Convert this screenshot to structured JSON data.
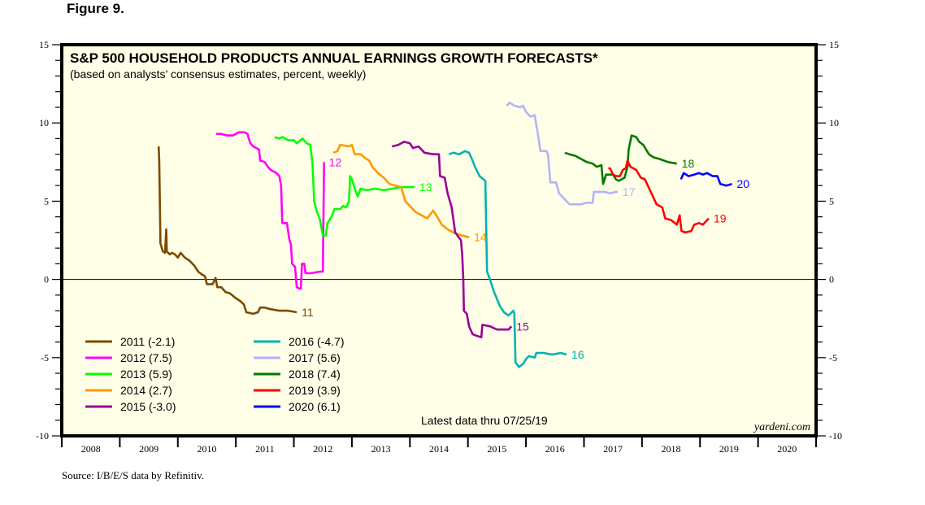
{
  "figure_label": "Figure 9.",
  "source": "Source: I/B/E/S data by Refinitiv.",
  "latest_note": "Latest data thru 07/25/19",
  "watermark": "yardeni.com",
  "chart_data": {
    "type": "line",
    "title": "S&P 500 HOUSEHOLD PRODUCTS ANNUAL EARNINGS GROWTH FORECASTS*",
    "subtitle": "(based on analysts’ consensus estimates, percent, weekly)",
    "xlabel": "",
    "ylabel": "",
    "xlim": [
      2008,
      2021
    ],
    "ylim": [
      -10,
      15
    ],
    "y_ticks": [
      15,
      10,
      5,
      0,
      -5,
      -10
    ],
    "y_tick_labels": [
      "15",
      "10",
      "5",
      "0",
      "-5",
      "-10"
    ],
    "x_tick_labels": [
      "2008",
      "2009",
      "2010",
      "2011",
      "2012",
      "2013",
      "2014",
      "2015",
      "2016",
      "2017",
      "2018",
      "2019",
      "2020"
    ],
    "zero_line": true,
    "grid": false,
    "background": "#fffee6",
    "legend_position": "bottom-left",
    "series": [
      {
        "name": "2011 (-2.1)",
        "end_label": "11",
        "color": "#7b4a00",
        "points": [
          [
            2009.67,
            8.5
          ],
          [
            2009.68,
            7.6
          ],
          [
            2009.7,
            2.3
          ],
          [
            2009.74,
            1.8
          ],
          [
            2009.78,
            1.7
          ],
          [
            2009.8,
            3.2
          ],
          [
            2009.81,
            1.8
          ],
          [
            2009.86,
            1.6
          ],
          [
            2009.9,
            1.7
          ],
          [
            2009.95,
            1.6
          ],
          [
            2010.0,
            1.4
          ],
          [
            2010.05,
            1.7
          ],
          [
            2010.12,
            1.4
          ],
          [
            2010.2,
            1.2
          ],
          [
            2010.28,
            0.9
          ],
          [
            2010.35,
            0.5
          ],
          [
            2010.42,
            0.3
          ],
          [
            2010.47,
            0.2
          ],
          [
            2010.5,
            -0.3
          ],
          [
            2010.6,
            -0.3
          ],
          [
            2010.65,
            0.1
          ],
          [
            2010.68,
            -0.5
          ],
          [
            2010.75,
            -0.5
          ],
          [
            2010.82,
            -0.8
          ],
          [
            2010.9,
            -0.9
          ],
          [
            2011.0,
            -1.2
          ],
          [
            2011.08,
            -1.4
          ],
          [
            2011.14,
            -1.6
          ],
          [
            2011.18,
            -2.1
          ],
          [
            2011.3,
            -2.2
          ],
          [
            2011.38,
            -2.1
          ],
          [
            2011.42,
            -1.8
          ],
          [
            2011.5,
            -1.8
          ],
          [
            2011.6,
            -1.9
          ],
          [
            2011.75,
            -2.0
          ],
          [
            2011.9,
            -2.0
          ],
          [
            2012.05,
            -2.1
          ]
        ]
      },
      {
        "name": "2012 (7.5)",
        "end_label": "12",
        "color": "#ff00ff",
        "points": [
          [
            2010.66,
            9.3
          ],
          [
            2010.75,
            9.3
          ],
          [
            2010.85,
            9.2
          ],
          [
            2010.95,
            9.2
          ],
          [
            2011.05,
            9.4
          ],
          [
            2011.15,
            9.4
          ],
          [
            2011.2,
            9.3
          ],
          [
            2011.25,
            8.7
          ],
          [
            2011.3,
            8.5
          ],
          [
            2011.4,
            8.3
          ],
          [
            2011.42,
            7.6
          ],
          [
            2011.5,
            7.5
          ],
          [
            2011.55,
            7.2
          ],
          [
            2011.6,
            7.0
          ],
          [
            2011.7,
            6.8
          ],
          [
            2011.75,
            6.6
          ],
          [
            2011.78,
            6.0
          ],
          [
            2011.8,
            3.6
          ],
          [
            2011.88,
            3.6
          ],
          [
            2011.92,
            2.6
          ],
          [
            2011.95,
            2.2
          ],
          [
            2011.97,
            1.0
          ],
          [
            2012.02,
            0.8
          ],
          [
            2012.05,
            -0.5
          ],
          [
            2012.1,
            -0.6
          ],
          [
            2012.12,
            -0.6
          ],
          [
            2012.14,
            1.0
          ],
          [
            2012.18,
            1.0
          ],
          [
            2012.2,
            0.4
          ],
          [
            2012.3,
            0.4
          ],
          [
            2012.45,
            0.5
          ],
          [
            2012.5,
            0.5
          ],
          [
            2012.52,
            7.5
          ]
        ]
      },
      {
        "name": "2013 (5.9)",
        "end_label": "13",
        "color": "#00ff00",
        "points": [
          [
            2011.67,
            9.1
          ],
          [
            2011.75,
            9.0
          ],
          [
            2011.8,
            9.1
          ],
          [
            2011.9,
            8.9
          ],
          [
            2012.0,
            8.9
          ],
          [
            2012.05,
            8.7
          ],
          [
            2012.15,
            9.0
          ],
          [
            2012.22,
            8.7
          ],
          [
            2012.28,
            8.6
          ],
          [
            2012.32,
            7.5
          ],
          [
            2012.35,
            5.0
          ],
          [
            2012.4,
            4.3
          ],
          [
            2012.45,
            3.8
          ],
          [
            2012.5,
            2.8
          ],
          [
            2012.55,
            2.8
          ],
          [
            2012.58,
            3.6
          ],
          [
            2012.65,
            4.0
          ],
          [
            2012.7,
            4.5
          ],
          [
            2012.8,
            4.5
          ],
          [
            2012.85,
            4.7
          ],
          [
            2012.9,
            4.6
          ],
          [
            2012.95,
            5.0
          ],
          [
            2012.97,
            6.6
          ],
          [
            2013.0,
            6.4
          ],
          [
            2013.05,
            5.8
          ],
          [
            2013.1,
            5.3
          ],
          [
            2013.15,
            5.8
          ],
          [
            2013.25,
            5.7
          ],
          [
            2013.4,
            5.8
          ],
          [
            2013.55,
            5.7
          ],
          [
            2013.7,
            5.8
          ],
          [
            2013.85,
            5.9
          ],
          [
            2014.08,
            5.9
          ]
        ]
      },
      {
        "name": "2014 (2.7)",
        "end_label": "14",
        "color": "#ff9900",
        "points": [
          [
            2012.68,
            8.1
          ],
          [
            2012.75,
            8.2
          ],
          [
            2012.8,
            8.6
          ],
          [
            2012.95,
            8.5
          ],
          [
            2013.0,
            8.6
          ],
          [
            2013.05,
            8.0
          ],
          [
            2013.15,
            8.0
          ],
          [
            2013.25,
            7.7
          ],
          [
            2013.3,
            7.6
          ],
          [
            2013.35,
            7.2
          ],
          [
            2013.45,
            6.8
          ],
          [
            2013.55,
            6.5
          ],
          [
            2013.65,
            6.1
          ],
          [
            2013.75,
            6.0
          ],
          [
            2013.85,
            5.9
          ],
          [
            2013.92,
            5.0
          ],
          [
            2013.97,
            4.8
          ],
          [
            2014.1,
            4.3
          ],
          [
            2014.2,
            4.1
          ],
          [
            2014.3,
            3.9
          ],
          [
            2014.4,
            4.4
          ],
          [
            2014.47,
            4.0
          ],
          [
            2014.55,
            3.5
          ],
          [
            2014.65,
            3.2
          ],
          [
            2014.75,
            3.0
          ],
          [
            2014.9,
            2.8
          ],
          [
            2015.02,
            2.7
          ]
        ]
      },
      {
        "name": "2015 (-3.0)",
        "end_label": "15",
        "color": "#990099",
        "points": [
          [
            2013.69,
            8.5
          ],
          [
            2013.8,
            8.6
          ],
          [
            2013.9,
            8.8
          ],
          [
            2014.0,
            8.7
          ],
          [
            2014.05,
            8.4
          ],
          [
            2014.15,
            8.5
          ],
          [
            2014.25,
            8.1
          ],
          [
            2014.4,
            8.0
          ],
          [
            2014.5,
            8.0
          ],
          [
            2014.52,
            6.6
          ],
          [
            2014.6,
            6.5
          ],
          [
            2014.65,
            5.5
          ],
          [
            2014.72,
            4.6
          ],
          [
            2014.78,
            3.0
          ],
          [
            2014.88,
            2.5
          ],
          [
            2014.9,
            1.6
          ],
          [
            2014.92,
            0.0
          ],
          [
            2014.93,
            -2.0
          ],
          [
            2014.98,
            -2.2
          ],
          [
            2015.02,
            -3.0
          ],
          [
            2015.08,
            -3.5
          ],
          [
            2015.15,
            -3.6
          ],
          [
            2015.23,
            -3.7
          ],
          [
            2015.25,
            -2.9
          ],
          [
            2015.38,
            -3.0
          ],
          [
            2015.5,
            -3.2
          ],
          [
            2015.6,
            -3.2
          ],
          [
            2015.7,
            -3.2
          ],
          [
            2015.75,
            -3.0
          ]
        ]
      },
      {
        "name": "2016 (-4.7)",
        "end_label": "16",
        "color": "#00b3b3",
        "points": [
          [
            2014.67,
            8.0
          ],
          [
            2014.75,
            8.1
          ],
          [
            2014.85,
            8.0
          ],
          [
            2014.95,
            8.2
          ],
          [
            2015.02,
            8.1
          ],
          [
            2015.08,
            7.6
          ],
          [
            2015.12,
            7.2
          ],
          [
            2015.2,
            6.6
          ],
          [
            2015.3,
            6.3
          ],
          [
            2015.33,
            0.5
          ],
          [
            2015.38,
            0.0
          ],
          [
            2015.45,
            -0.8
          ],
          [
            2015.55,
            -1.7
          ],
          [
            2015.62,
            -2.1
          ],
          [
            2015.7,
            -2.3
          ],
          [
            2015.78,
            -2.0
          ],
          [
            2015.8,
            -2.2
          ],
          [
            2015.82,
            -5.3
          ],
          [
            2015.88,
            -5.6
          ],
          [
            2015.95,
            -5.4
          ],
          [
            2016.0,
            -5.1
          ],
          [
            2016.05,
            -4.9
          ],
          [
            2016.15,
            -5.0
          ],
          [
            2016.18,
            -4.7
          ],
          [
            2016.3,
            -4.7
          ],
          [
            2016.45,
            -4.8
          ],
          [
            2016.6,
            -4.7
          ],
          [
            2016.7,
            -4.8
          ]
        ]
      },
      {
        "name": "2017 (5.6)",
        "end_label": "17",
        "color": "#b3b3ff",
        "points": [
          [
            2015.67,
            11.1
          ],
          [
            2015.72,
            11.3
          ],
          [
            2015.8,
            11.1
          ],
          [
            2015.9,
            11.0
          ],
          [
            2015.95,
            11.1
          ],
          [
            2016.0,
            10.7
          ],
          [
            2016.08,
            10.4
          ],
          [
            2016.15,
            10.5
          ],
          [
            2016.2,
            9.4
          ],
          [
            2016.25,
            8.2
          ],
          [
            2016.35,
            8.2
          ],
          [
            2016.38,
            8.0
          ],
          [
            2016.42,
            6.2
          ],
          [
            2016.52,
            6.2
          ],
          [
            2016.57,
            5.5
          ],
          [
            2016.65,
            5.2
          ],
          [
            2016.75,
            4.8
          ],
          [
            2016.85,
            4.8
          ],
          [
            2016.95,
            4.8
          ],
          [
            2017.05,
            4.9
          ],
          [
            2017.15,
            4.9
          ],
          [
            2017.17,
            5.6
          ],
          [
            2017.35,
            5.6
          ],
          [
            2017.45,
            5.5
          ],
          [
            2017.55,
            5.6
          ],
          [
            2017.58,
            5.6
          ]
        ]
      },
      {
        "name": "2018 (7.4)",
        "end_label": "18",
        "color": "#007a00",
        "points": [
          [
            2016.67,
            8.1
          ],
          [
            2016.75,
            8.0
          ],
          [
            2016.85,
            7.9
          ],
          [
            2016.95,
            7.7
          ],
          [
            2017.05,
            7.5
          ],
          [
            2017.15,
            7.4
          ],
          [
            2017.22,
            7.2
          ],
          [
            2017.3,
            7.3
          ],
          [
            2017.33,
            6.1
          ],
          [
            2017.38,
            6.7
          ],
          [
            2017.5,
            6.7
          ],
          [
            2017.55,
            6.4
          ],
          [
            2017.6,
            6.3
          ],
          [
            2017.7,
            6.5
          ],
          [
            2017.75,
            7.2
          ],
          [
            2017.77,
            8.3
          ],
          [
            2017.82,
            9.2
          ],
          [
            2017.9,
            9.1
          ],
          [
            2017.95,
            8.8
          ],
          [
            2018.02,
            8.6
          ],
          [
            2018.12,
            8.0
          ],
          [
            2018.2,
            7.8
          ],
          [
            2018.3,
            7.7
          ],
          [
            2018.45,
            7.5
          ],
          [
            2018.6,
            7.4
          ]
        ]
      },
      {
        "name": "2019 (3.9)",
        "end_label": "19",
        "color": "#ff0000",
        "points": [
          [
            2017.42,
            7.1
          ],
          [
            2017.45,
            7.1
          ],
          [
            2017.5,
            6.7
          ],
          [
            2017.55,
            6.6
          ],
          [
            2017.62,
            6.6
          ],
          [
            2017.67,
            7.0
          ],
          [
            2017.72,
            7.1
          ],
          [
            2017.75,
            7.6
          ],
          [
            2017.8,
            7.2
          ],
          [
            2017.9,
            7.0
          ],
          [
            2017.98,
            6.5
          ],
          [
            2018.05,
            6.4
          ],
          [
            2018.15,
            5.6
          ],
          [
            2018.25,
            4.8
          ],
          [
            2018.35,
            4.6
          ],
          [
            2018.4,
            3.9
          ],
          [
            2018.5,
            3.8
          ],
          [
            2018.6,
            3.5
          ],
          [
            2018.65,
            4.1
          ],
          [
            2018.68,
            3.1
          ],
          [
            2018.75,
            3.0
          ],
          [
            2018.85,
            3.1
          ],
          [
            2018.9,
            3.5
          ],
          [
            2018.98,
            3.6
          ],
          [
            2019.05,
            3.5
          ],
          [
            2019.15,
            3.9
          ]
        ]
      },
      {
        "name": "2020 (6.1)",
        "end_label": "20",
        "color": "#0000ff",
        "points": [
          [
            2018.67,
            6.4
          ],
          [
            2018.72,
            6.8
          ],
          [
            2018.8,
            6.6
          ],
          [
            2018.9,
            6.7
          ],
          [
            2018.98,
            6.8
          ],
          [
            2019.05,
            6.7
          ],
          [
            2019.12,
            6.8
          ],
          [
            2019.22,
            6.6
          ],
          [
            2019.3,
            6.6
          ],
          [
            2019.35,
            6.1
          ],
          [
            2019.45,
            6.0
          ],
          [
            2019.55,
            6.1
          ]
        ]
      }
    ]
  }
}
